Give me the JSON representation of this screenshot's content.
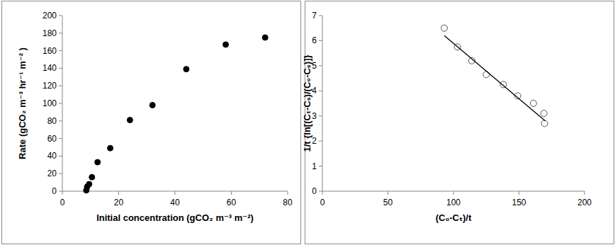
{
  "chart_data": [
    {
      "type": "scatter",
      "x_label": "Initial concentration (gCO₂ m⁻³ m⁻²)",
      "y_label": "Rate (gCO₂ m⁻³ hr⁻¹ m⁻² )",
      "x": [
        8.5,
        8.8,
        9.5,
        10.5,
        12.5,
        17,
        24,
        32,
        44,
        58,
        72
      ],
      "values": [
        1,
        5,
        8,
        16,
        33,
        49,
        81,
        98,
        139,
        167,
        175
      ],
      "marker": "filled-circle",
      "color": "#000000",
      "xlim": [
        0,
        80
      ],
      "xticks": [
        0,
        20,
        40,
        60,
        80
      ],
      "ylim": [
        0,
        200
      ],
      "yticks": [
        0,
        20,
        40,
        60,
        80,
        100,
        120,
        140,
        160,
        180,
        200
      ],
      "grid": false
    },
    {
      "type": "scatter",
      "x_label": "(C₀-Cₜ)/t",
      "y_label": "1/t {ln[(Cₜ-Cₛ)/(C₀-Cₛ)]}",
      "series": [
        {
          "type": "scatter",
          "marker": "open-circle",
          "color": "#000000",
          "x": [
            93,
            103,
            114,
            125,
            138,
            149,
            161,
            169,
            169.5
          ],
          "values": [
            6.5,
            5.75,
            5.2,
            4.65,
            4.25,
            3.8,
            3.5,
            3.1,
            2.7
          ]
        },
        {
          "type": "line",
          "line_style": "solid",
          "color": "#000000",
          "x": [
            93,
            170
          ],
          "values": [
            6.2,
            2.8
          ]
        }
      ],
      "xlim": [
        0,
        200
      ],
      "xticks": [
        0,
        50,
        100,
        150,
        200
      ],
      "ylim": [
        0,
        7
      ],
      "yticks": [
        0,
        1,
        2,
        3,
        4,
        5,
        6,
        7
      ],
      "grid": false
    }
  ]
}
